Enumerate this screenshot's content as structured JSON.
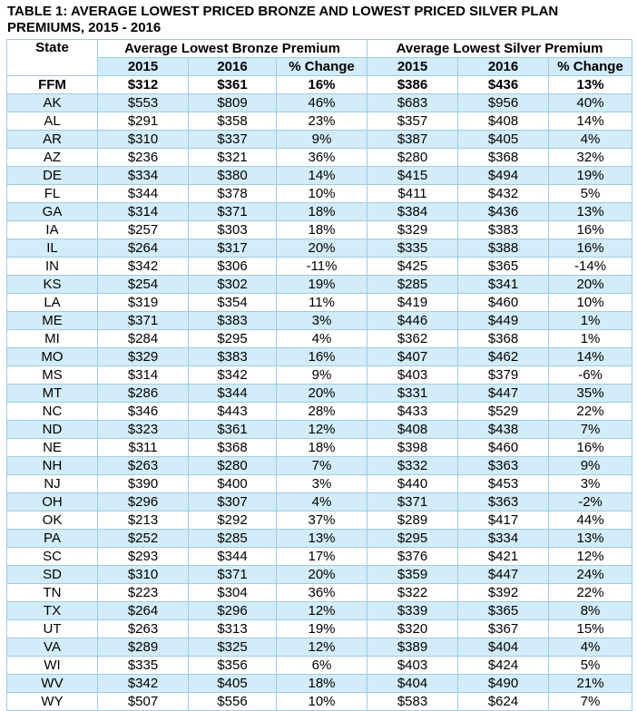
{
  "title": "TABLE 1: AVERAGE LOWEST PRICED BRONZE AND LOWEST PRICED SILVER PLAN PREMIUMS, 2015 - 2016",
  "header": {
    "state": "State",
    "groups": [
      "Average Lowest Bronze Premium",
      "Average Lowest Silver Premium"
    ],
    "columns": [
      "2015",
      "2016",
      "% Change",
      "2015",
      "2016",
      "% Change"
    ]
  },
  "summary": [
    "FFM",
    "$312",
    "$361",
    "16%",
    "$386",
    "$436",
    "13%"
  ],
  "rows": [
    [
      "AK",
      "$553",
      "$809",
      "46%",
      "$683",
      "$956",
      "40%"
    ],
    [
      "AL",
      "$291",
      "$358",
      "23%",
      "$357",
      "$408",
      "14%"
    ],
    [
      "AR",
      "$310",
      "$337",
      "9%",
      "$387",
      "$405",
      "4%"
    ],
    [
      "AZ",
      "$236",
      "$321",
      "36%",
      "$280",
      "$368",
      "32%"
    ],
    [
      "DE",
      "$334",
      "$380",
      "14%",
      "$415",
      "$494",
      "19%"
    ],
    [
      "FL",
      "$344",
      "$378",
      "10%",
      "$411",
      "$432",
      "5%"
    ],
    [
      "GA",
      "$314",
      "$371",
      "18%",
      "$384",
      "$436",
      "13%"
    ],
    [
      "IA",
      "$257",
      "$303",
      "18%",
      "$329",
      "$383",
      "16%"
    ],
    [
      "IL",
      "$264",
      "$317",
      "20%",
      "$335",
      "$388",
      "16%"
    ],
    [
      "IN",
      "$342",
      "$306",
      "-11%",
      "$425",
      "$365",
      "-14%"
    ],
    [
      "KS",
      "$254",
      "$302",
      "19%",
      "$285",
      "$341",
      "20%"
    ],
    [
      "LA",
      "$319",
      "$354",
      "11%",
      "$419",
      "$460",
      "10%"
    ],
    [
      "ME",
      "$371",
      "$383",
      "3%",
      "$446",
      "$449",
      "1%"
    ],
    [
      "MI",
      "$284",
      "$295",
      "4%",
      "$362",
      "$368",
      "1%"
    ],
    [
      "MO",
      "$329",
      "$383",
      "16%",
      "$407",
      "$462",
      "14%"
    ],
    [
      "MS",
      "$314",
      "$342",
      "9%",
      "$403",
      "$379",
      "-6%"
    ],
    [
      "MT",
      "$286",
      "$344",
      "20%",
      "$331",
      "$447",
      "35%"
    ],
    [
      "NC",
      "$346",
      "$443",
      "28%",
      "$433",
      "$529",
      "22%"
    ],
    [
      "ND",
      "$323",
      "$361",
      "12%",
      "$408",
      "$438",
      "7%"
    ],
    [
      "NE",
      "$311",
      "$368",
      "18%",
      "$398",
      "$460",
      "16%"
    ],
    [
      "NH",
      "$263",
      "$280",
      "7%",
      "$332",
      "$363",
      "9%"
    ],
    [
      "NJ",
      "$390",
      "$400",
      "3%",
      "$440",
      "$453",
      "3%"
    ],
    [
      "OH",
      "$296",
      "$307",
      "4%",
      "$371",
      "$363",
      "-2%"
    ],
    [
      "OK",
      "$213",
      "$292",
      "37%",
      "$289",
      "$417",
      "44%"
    ],
    [
      "PA",
      "$252",
      "$285",
      "13%",
      "$295",
      "$334",
      "13%"
    ],
    [
      "SC",
      "$293",
      "$344",
      "17%",
      "$376",
      "$421",
      "12%"
    ],
    [
      "SD",
      "$310",
      "$371",
      "20%",
      "$359",
      "$447",
      "24%"
    ],
    [
      "TN",
      "$223",
      "$304",
      "36%",
      "$322",
      "$392",
      "22%"
    ],
    [
      "TX",
      "$264",
      "$296",
      "12%",
      "$339",
      "$365",
      "8%"
    ],
    [
      "UT",
      "$263",
      "$313",
      "19%",
      "$320",
      "$367",
      "15%"
    ],
    [
      "VA",
      "$289",
      "$325",
      "12%",
      "$389",
      "$404",
      "4%"
    ],
    [
      "WI",
      "$335",
      "$356",
      "6%",
      "$403",
      "$424",
      "5%"
    ],
    [
      "WV",
      "$342",
      "$405",
      "18%",
      "$404",
      "$490",
      "21%"
    ],
    [
      "WY",
      "$507",
      "$556",
      "10%",
      "$583",
      "$624",
      "7%"
    ]
  ]
}
